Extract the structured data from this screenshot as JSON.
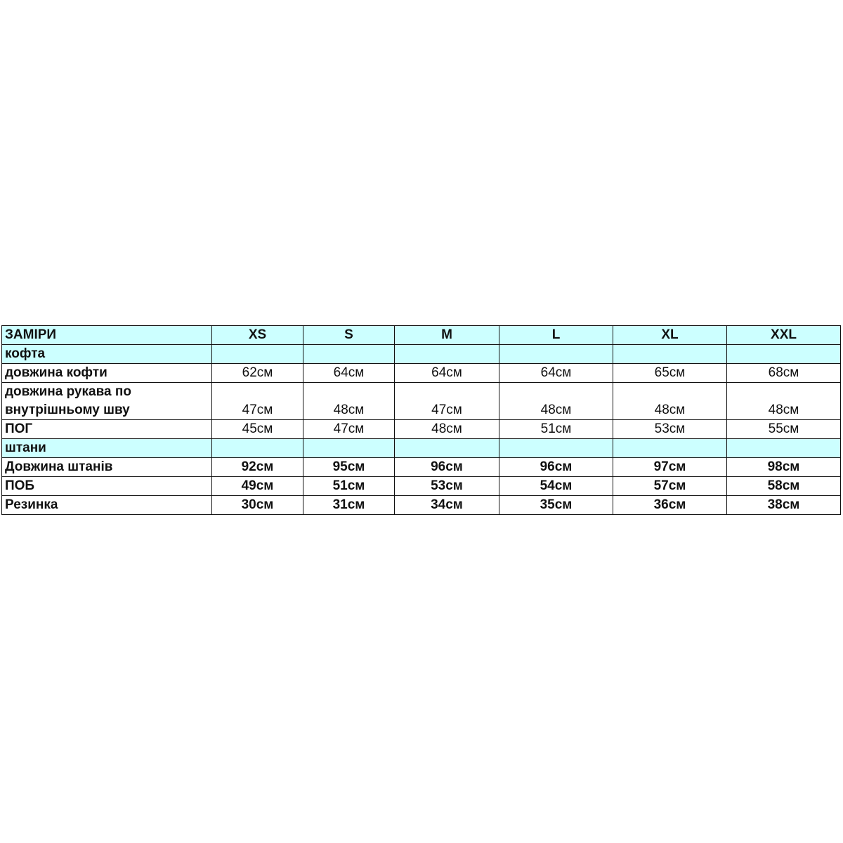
{
  "table": {
    "header": [
      "ЗАМІРИ",
      "XS",
      "S",
      "M",
      "L",
      "XL",
      "XXL"
    ],
    "rows": [
      {
        "type": "section",
        "cells": [
          "кофта",
          "",
          "",
          "",
          "",
          "",
          ""
        ]
      },
      {
        "type": "regular",
        "cells": [
          "довжина кофти",
          "62см",
          "64см",
          "64см",
          "64см",
          "65см",
          "68см"
        ]
      },
      {
        "type": "tall",
        "cells": [
          "довжина рукава по внутрішньому шву",
          "47см",
          "48см",
          "47см",
          "48см",
          "48см",
          "48см"
        ]
      },
      {
        "type": "regular",
        "cells": [
          "ПОГ",
          "45см",
          "47см",
          "48см",
          "51см",
          "53см",
          "55см"
        ]
      },
      {
        "type": "section",
        "cells": [
          "штани",
          "",
          "",
          "",
          "",
          "",
          ""
        ]
      },
      {
        "type": "bold",
        "cells": [
          "Довжина штанів",
          "92см",
          "95см",
          "96см",
          "96см",
          "97см",
          "98см"
        ]
      },
      {
        "type": "bold",
        "cells": [
          "ПОБ",
          "49см",
          "51см",
          "53см",
          "54см",
          "57см",
          "58см"
        ]
      },
      {
        "type": "bold",
        "cells": [
          "Резинка",
          "30см",
          "31см",
          "34см",
          "35см",
          "36см",
          "38см"
        ]
      }
    ],
    "colors": {
      "header_fill": "#ccffff",
      "border": "#111111"
    }
  }
}
